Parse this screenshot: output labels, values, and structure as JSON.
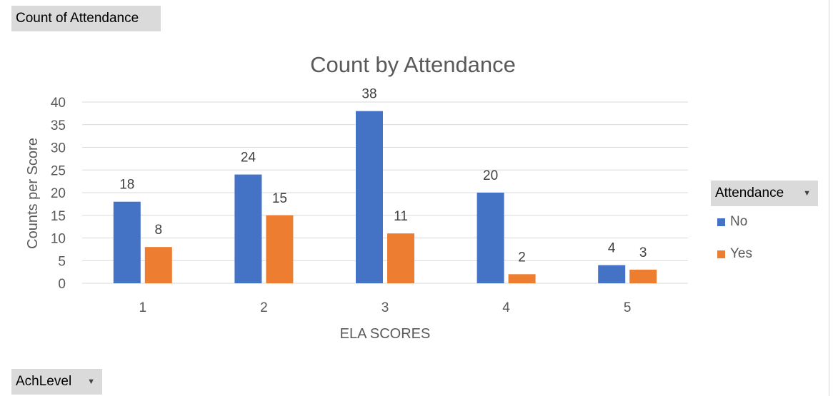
{
  "pivot_fields": {
    "values": "Count of Attendance",
    "axis": "AchLevel",
    "legend": "Attendance"
  },
  "colors": {
    "No": "#4472c4",
    "Yes": "#ed7d31",
    "grid": "#d9d9d9",
    "text": "#595959"
  },
  "icons": {
    "dropdown": "chevron-down-icon"
  },
  "chart_data": {
    "type": "bar",
    "title": "Count by Attendance",
    "xlabel": "ELA SCORES",
    "ylabel": "Counts per Score",
    "categories": [
      "1",
      "2",
      "3",
      "4",
      "5"
    ],
    "series": [
      {
        "name": "No",
        "values": [
          18,
          24,
          38,
          20,
          4
        ]
      },
      {
        "name": "Yes",
        "values": [
          8,
          15,
          11,
          2,
          3
        ]
      }
    ],
    "ylim": [
      0,
      40
    ],
    "yticks": [
      0,
      5,
      10,
      15,
      20,
      25,
      30,
      35,
      40
    ],
    "grid": true,
    "legend_position": "right"
  }
}
